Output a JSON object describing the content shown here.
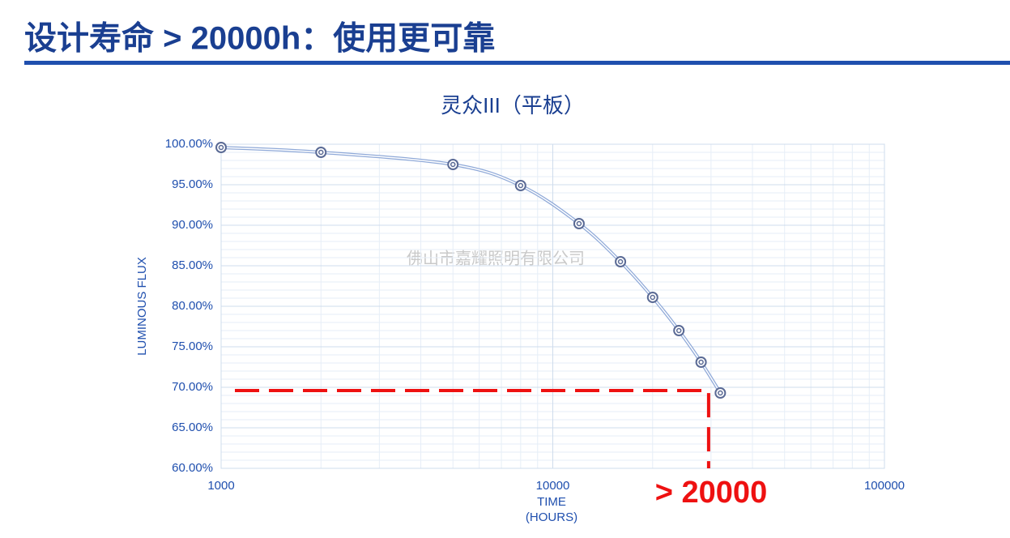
{
  "header": {
    "title": "设计寿命 > 20000h：使用更可靠"
  },
  "chart_data": {
    "type": "line",
    "title": "灵众III（平板）",
    "watermark": "佛山市嘉耀照明有限公司",
    "xlabel": [
      "TIME",
      "(HOURS)"
    ],
    "ylabel": "LUMINOUS FLUX",
    "x": [
      1000,
      2000,
      5000,
      8000,
      12000,
      16000,
      20000,
      24000,
      28000,
      32000
    ],
    "series": [
      {
        "color": "#8fa9d8",
        "values": [
          99.6,
          99.0,
          97.5,
          94.9,
          90.2,
          85.5,
          81.1,
          77.0,
          73.1,
          69.3
        ]
      }
    ],
    "xscale": "log",
    "xlim": [
      1000,
      100000
    ],
    "xticks": [
      1000,
      10000,
      100000
    ],
    "ylim": [
      60,
      100
    ],
    "yticks": [
      {
        "value": 60,
        "label": "60.00%"
      },
      {
        "value": 65,
        "label": "65.00%"
      },
      {
        "value": 70,
        "label": "70.00%"
      },
      {
        "value": 75,
        "label": "75.00%"
      },
      {
        "value": 80,
        "label": "80.00%"
      },
      {
        "value": 85,
        "label": "85.00%"
      },
      {
        "value": 90,
        "label": "90.00%"
      },
      {
        "value": 95,
        "label": "95.00%"
      },
      {
        "value": 100,
        "label": "100.00%"
      }
    ],
    "grid": true,
    "reference": {
      "x": 29500,
      "y": 69.6,
      "color": "#ee1111",
      "label": "> 20000"
    }
  }
}
